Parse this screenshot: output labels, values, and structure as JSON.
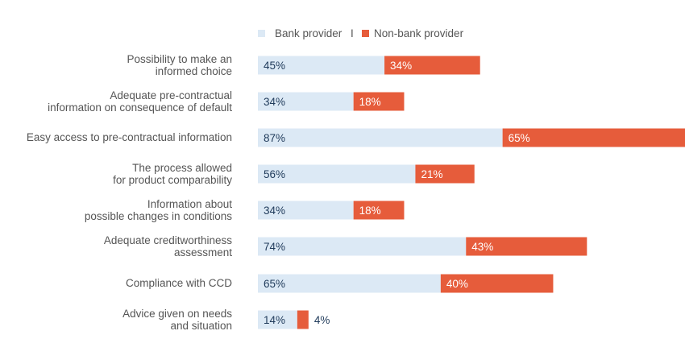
{
  "chart_data": {
    "type": "bar",
    "stacked": true,
    "orientation": "horizontal",
    "categories": [
      "Possibility to make an|informed choice",
      "Adequate pre-contractual|information on consequence of default",
      "Easy access to pre-contractual information",
      "The process allowed|for product comparability",
      "Information about|possible changes in conditions",
      "Adequate creditworthiness|assessment",
      "Compliance with CCD",
      "Advice given on needs|and situation"
    ],
    "series": [
      {
        "name": "Bank provider",
        "color": "#dce9f5",
        "label_color": "#1f3a5a",
        "values": [
          45,
          34,
          87,
          56,
          34,
          74,
          65,
          14
        ],
        "labels": [
          "45%",
          "34%",
          "87%",
          "56%",
          "34%",
          "74%",
          "65%",
          "14%"
        ]
      },
      {
        "name": "Non-bank provider",
        "color": "#e65c3b",
        "label_color": "#ffffff",
        "values": [
          34,
          18,
          65,
          21,
          18,
          43,
          40,
          4
        ],
        "labels": [
          "34%",
          "18%",
          "65%",
          "21%",
          "18%",
          "43%",
          "40%",
          "4%"
        ]
      }
    ],
    "legend": {
      "position": "top",
      "separator": "I"
    },
    "grid": false
  }
}
